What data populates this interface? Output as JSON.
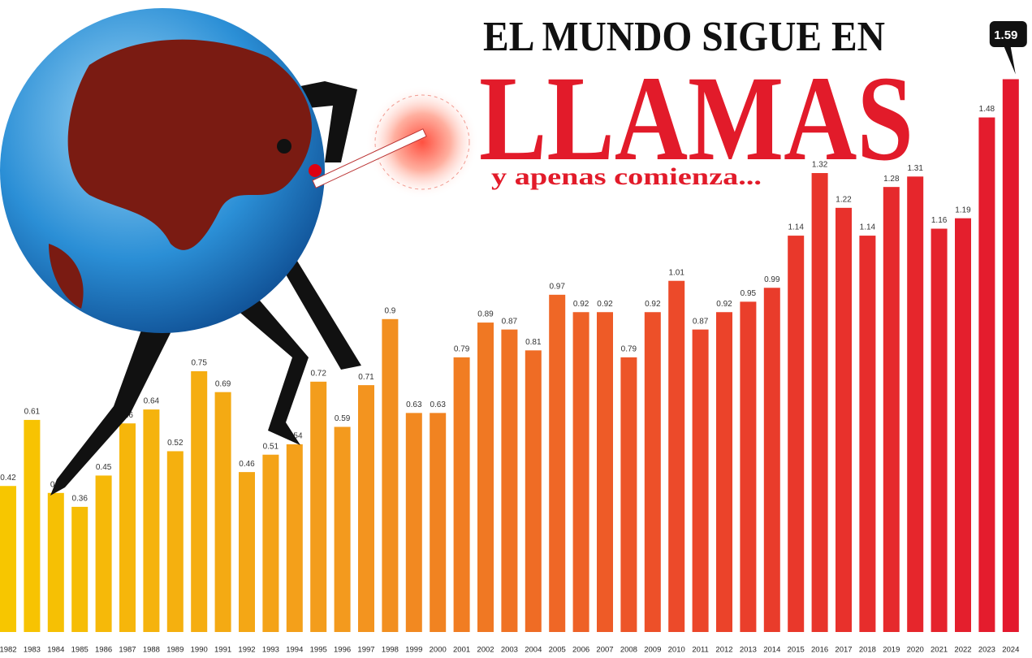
{
  "chart_data": {
    "type": "bar",
    "title": "EL MUNDO SIGUE EN",
    "title_big": "LLAMAS",
    "subtitle": "y apenas comienza...",
    "categories": [
      "1982",
      "1983",
      "1984",
      "1985",
      "1986",
      "1987",
      "1988",
      "1989",
      "1990",
      "1991",
      "1992",
      "1993",
      "1994",
      "1995",
      "1996",
      "1997",
      "1998",
      "1999",
      "2000",
      "2001",
      "2002",
      "2003",
      "2004",
      "2005",
      "2006",
      "2007",
      "2008",
      "2009",
      "2010",
      "2011",
      "2012",
      "2013",
      "2014",
      "2015",
      "2016",
      "2017",
      "2018",
      "2019",
      "2020",
      "2021",
      "2022",
      "2023",
      "2024"
    ],
    "values": [
      0.42,
      0.61,
      0.4,
      0.36,
      0.45,
      0.6,
      0.64,
      0.52,
      0.75,
      0.69,
      0.46,
      0.51,
      0.54,
      0.72,
      0.59,
      0.71,
      0.9,
      0.63,
      0.63,
      0.79,
      0.89,
      0.87,
      0.81,
      0.97,
      0.92,
      0.92,
      0.79,
      0.92,
      1.01,
      0.87,
      0.92,
      0.95,
      0.99,
      1.14,
      1.32,
      1.22,
      1.14,
      1.28,
      1.31,
      1.16,
      1.19,
      1.48,
      1.59
    ],
    "color_stops": [
      "#f7c600",
      "#f39a1e",
      "#ec4a2a",
      "#e3182d"
    ],
    "highlight_last": true
  }
}
